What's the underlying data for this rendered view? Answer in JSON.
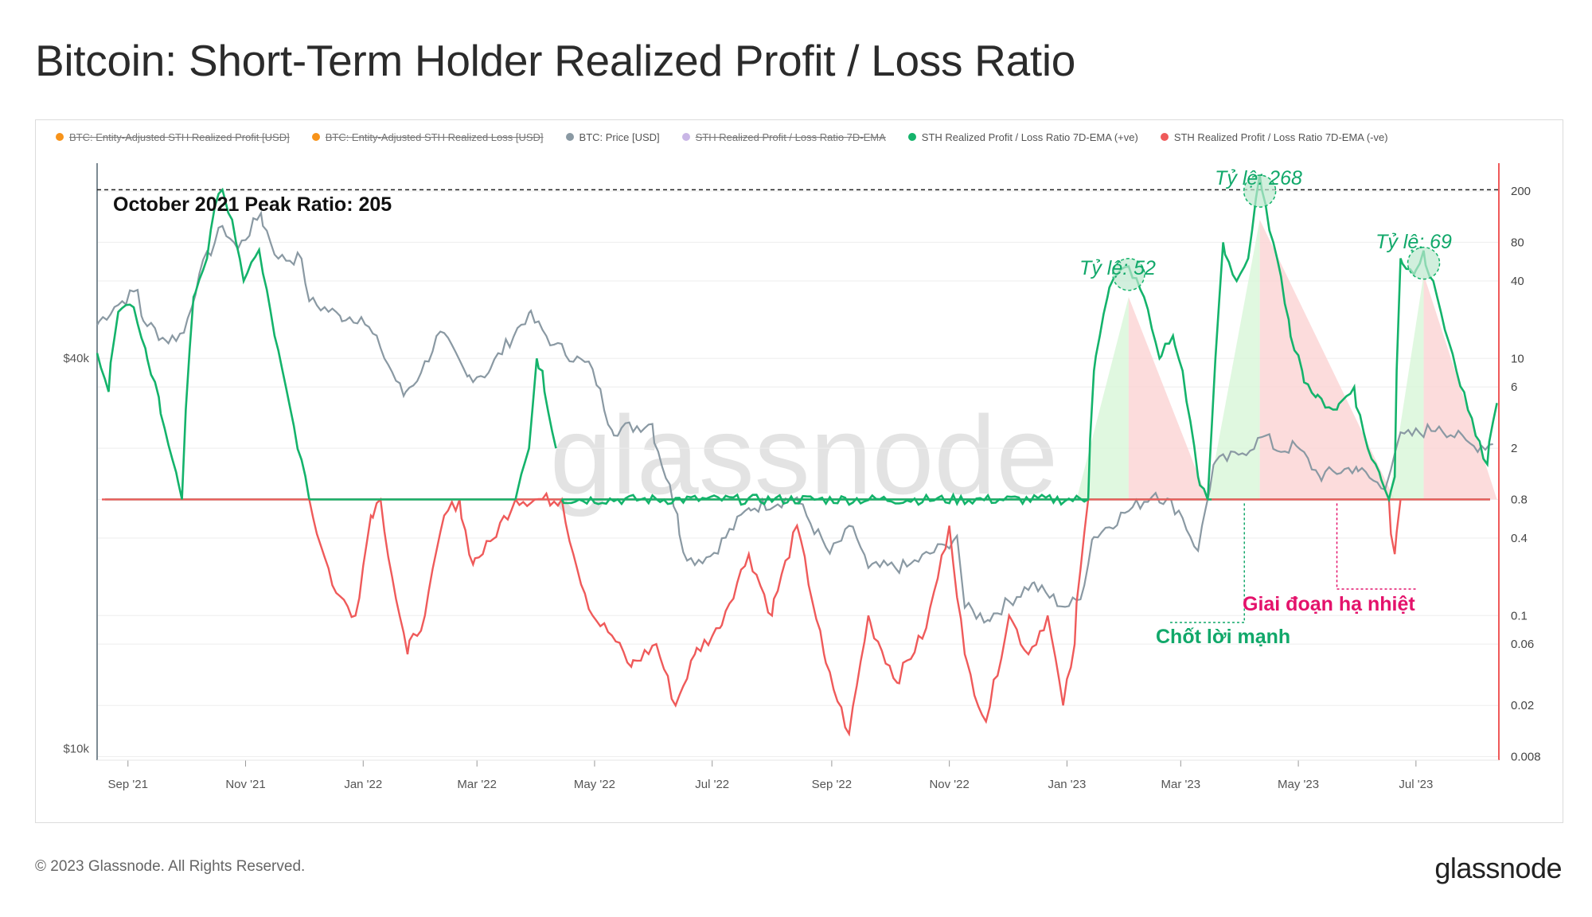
{
  "title": "Bitcoin: Short-Term Holder Realized Profit / Loss Ratio",
  "legend": [
    {
      "label": "BTC: Entity-Adjusted STH Realized Profit [USD]",
      "color": "#f7931a",
      "off": true
    },
    {
      "label": "BTC: Entity-Adjusted STH Realized Loss [USD]",
      "color": "#f7931a",
      "off": true
    },
    {
      "label": "BTC: Price [USD]",
      "color": "#8a99a3",
      "off": false
    },
    {
      "label": "STH Realized Profit / Loss Ratio 7D-EMA",
      "color": "#c9b6e6",
      "off": true
    },
    {
      "label": "STH Realized Profit / Loss Ratio 7D-EMA (+ve)",
      "color": "#14b36b",
      "off": false
    },
    {
      "label": "STH Realized Profit / Loss Ratio 7D-EMA (-ve)",
      "color": "#ef5a5a",
      "off": false
    }
  ],
  "annotations": {
    "peak_line": "October 2021  Peak Ratio: 205",
    "ratio_52": "Tỷ lệ: 52",
    "ratio_268": "Tỷ lệ: 268",
    "ratio_69": "Tỷ lệ: 69",
    "profit_taking": "Chốt lời mạnh",
    "cooling": "Giai đoạn hạ nhiệt"
  },
  "footer": {
    "copyright": "© 2023 Glassnode. All Rights Reserved.",
    "logo": "glassnode",
    "watermark": "glassnode"
  },
  "colors": {
    "price": "#8a99a3",
    "positive": "#14b36b",
    "negative": "#ef5a5a",
    "profit_fill": "#d6f5d6",
    "loss_fill": "#fbd0d0",
    "annotation_green": "#11a86a",
    "annotation_pink": "#e4126b"
  },
  "chart_data": {
    "type": "line",
    "x_ticks": [
      "Sep '21",
      "Nov '21",
      "Jan '22",
      "Mar '22",
      "May '22",
      "Jul '22",
      "Sep '22",
      "Nov '22",
      "Jan '23",
      "Mar '23",
      "May '23",
      "Jul '23"
    ],
    "x_tick_dates": [
      "2021-09-01",
      "2021-11-01",
      "2022-01-01",
      "2022-03-01",
      "2022-05-01",
      "2022-07-01",
      "2022-09-01",
      "2022-11-01",
      "2023-01-01",
      "2023-03-01",
      "2023-05-01",
      "2023-07-01"
    ],
    "x_range": [
      "2021-08-16",
      "2023-08-13"
    ],
    "left_axis": {
      "scale": "log",
      "ticks": [
        "$10k",
        "$40k"
      ],
      "tick_values": [
        10000,
        40000
      ]
    },
    "right_axis": {
      "scale": "log",
      "ticks": [
        "0.008",
        "0.02",
        "0.06",
        "0.1",
        "0.4",
        "0.8",
        "2",
        "6",
        "10",
        "40",
        "80",
        "200"
      ],
      "tick_values": [
        0.008,
        0.02,
        0.06,
        0.1,
        0.4,
        0.8,
        2,
        6,
        10,
        40,
        80,
        200
      ]
    },
    "series": [
      {
        "name": "BTC: Price [USD]",
        "axis": "left",
        "points": [
          [
            "2021-08-16",
            45000
          ],
          [
            "2021-08-25",
            48000
          ],
          [
            "2021-09-06",
            51000
          ],
          [
            "2021-09-08",
            46500
          ],
          [
            "2021-09-21",
            42500
          ],
          [
            "2021-09-30",
            43800
          ],
          [
            "2021-10-08",
            54000
          ],
          [
            "2021-10-20",
            64000
          ],
          [
            "2021-10-28",
            59000
          ],
          [
            "2021-11-09",
            67000
          ],
          [
            "2021-11-18",
            57000
          ],
          [
            "2021-11-30",
            57000
          ],
          [
            "2021-12-04",
            49000
          ],
          [
            "2021-12-20",
            46500
          ],
          [
            "2021-12-31",
            46300
          ],
          [
            "2022-01-10",
            41500
          ],
          [
            "2022-01-22",
            35000
          ],
          [
            "2022-01-31",
            38000
          ],
          [
            "2022-02-10",
            44000
          ],
          [
            "2022-02-24",
            37500
          ],
          [
            "2022-03-07",
            38000
          ],
          [
            "2022-03-28",
            47000
          ],
          [
            "2022-04-10",
            42000
          ],
          [
            "2022-04-30",
            38500
          ],
          [
            "2022-05-10",
            31000
          ],
          [
            "2022-05-31",
            31700
          ],
          [
            "2022-06-13",
            23000
          ],
          [
            "2022-06-18",
            19500
          ],
          [
            "2022-06-30",
            19800
          ],
          [
            "2022-07-20",
            23500
          ],
          [
            "2022-08-14",
            24400
          ],
          [
            "2022-08-31",
            20000
          ],
          [
            "2022-09-12",
            22000
          ],
          [
            "2022-09-20",
            19000
          ],
          [
            "2022-10-10",
            19100
          ],
          [
            "2022-10-30",
            20600
          ],
          [
            "2022-11-05",
            21300
          ],
          [
            "2022-11-09",
            16500
          ],
          [
            "2022-11-21",
            15800
          ],
          [
            "2022-12-14",
            18000
          ],
          [
            "2022-12-31",
            16550
          ],
          [
            "2023-01-08",
            17000
          ],
          [
            "2023-01-14",
            21000
          ],
          [
            "2023-01-31",
            23100
          ],
          [
            "2023-02-16",
            24800
          ],
          [
            "2023-02-28",
            23300
          ],
          [
            "2023-03-10",
            20200
          ],
          [
            "2023-03-18",
            27400
          ],
          [
            "2023-03-31",
            28400
          ],
          [
            "2023-04-14",
            30400
          ],
          [
            "2023-04-20",
            28800
          ],
          [
            "2023-04-30",
            29300
          ],
          [
            "2023-05-12",
            26300
          ],
          [
            "2023-05-31",
            27200
          ],
          [
            "2023-06-15",
            25100
          ],
          [
            "2023-06-22",
            30000
          ],
          [
            "2023-07-13",
            31400
          ],
          [
            "2023-07-31",
            29300
          ],
          [
            "2023-08-10",
            29500
          ]
        ]
      },
      {
        "name": "STH Realized Profit / Loss Ratio 7D-EMA (+ve)",
        "axis": "right",
        "points": [
          [
            "2021-08-16",
            11
          ],
          [
            "2021-08-22",
            5.5
          ],
          [
            "2021-08-27",
            23
          ],
          [
            "2021-09-04",
            25
          ],
          [
            "2021-09-10",
            12
          ],
          [
            "2021-09-17",
            5
          ],
          [
            "2021-09-26",
            1.3
          ],
          [
            "2021-09-29",
            0.8
          ],
          [
            "2021-10-01",
            4
          ],
          [
            "2021-10-05",
            30
          ],
          [
            "2021-10-12",
            60
          ],
          [
            "2021-10-16",
            150
          ],
          [
            "2021-10-20",
            205
          ],
          [
            "2021-10-25",
            120
          ],
          [
            "2021-10-31",
            40
          ],
          [
            "2021-11-08",
            70
          ],
          [
            "2021-11-16",
            15
          ],
          [
            "2021-11-26",
            3
          ],
          [
            "2021-12-04",
            0.8
          ],
          [
            "2022-03-21",
            0.8
          ],
          [
            "2022-03-28",
            2
          ],
          [
            "2022-04-01",
            10
          ],
          [
            "2022-04-04",
            8
          ],
          [
            "2022-04-11",
            2
          ],
          [
            "2022-04-14",
            0.8
          ],
          [
            "2023-01-12",
            0.8
          ],
          [
            "2023-01-15",
            8
          ],
          [
            "2023-01-22",
            30
          ],
          [
            "2023-01-27",
            45
          ],
          [
            "2023-02-02",
            52
          ],
          [
            "2023-02-10",
            30
          ],
          [
            "2023-02-18",
            10
          ],
          [
            "2023-02-25",
            15
          ],
          [
            "2023-03-02",
            8
          ],
          [
            "2023-03-10",
            1.2
          ],
          [
            "2023-03-15",
            0.8
          ],
          [
            "2023-03-19",
            10
          ],
          [
            "2023-03-23",
            80
          ],
          [
            "2023-03-30",
            40
          ],
          [
            "2023-04-05",
            60
          ],
          [
            "2023-04-11",
            268
          ],
          [
            "2023-04-18",
            80
          ],
          [
            "2023-04-26",
            20
          ],
          [
            "2023-05-03",
            8
          ],
          [
            "2023-05-10",
            5
          ],
          [
            "2023-05-21",
            4
          ],
          [
            "2023-05-30",
            6
          ],
          [
            "2023-06-06",
            2
          ],
          [
            "2023-06-12",
            1.3
          ],
          [
            "2023-06-17",
            0.8
          ],
          [
            "2023-06-20",
            1.2
          ],
          [
            "2023-06-23",
            60
          ],
          [
            "2023-06-30",
            45
          ],
          [
            "2023-07-05",
            69
          ],
          [
            "2023-07-12",
            30
          ],
          [
            "2023-07-22",
            8
          ],
          [
            "2023-08-01",
            2.5
          ],
          [
            "2023-08-07",
            1.5
          ],
          [
            "2023-08-12",
            4.5
          ]
        ]
      },
      {
        "name": "STH Realized Profit / Loss Ratio 7D-EMA (-ve)",
        "axis": "right",
        "points": [
          [
            "2021-12-04",
            0.8
          ],
          [
            "2021-12-10",
            0.35
          ],
          [
            "2021-12-18",
            0.15
          ],
          [
            "2021-12-28",
            0.1
          ],
          [
            "2022-01-05",
            0.6
          ],
          [
            "2022-01-10",
            0.8
          ],
          [
            "2022-01-16",
            0.2
          ],
          [
            "2022-01-24",
            0.05
          ],
          [
            "2022-02-02",
            0.1
          ],
          [
            "2022-02-12",
            0.6
          ],
          [
            "2022-02-20",
            0.8
          ],
          [
            "2022-02-27",
            0.25
          ],
          [
            "2022-03-10",
            0.4
          ],
          [
            "2022-03-21",
            0.8
          ],
          [
            "2022-04-14",
            0.8
          ],
          [
            "2022-04-20",
            0.3
          ],
          [
            "2022-04-30",
            0.1
          ],
          [
            "2022-05-10",
            0.07
          ],
          [
            "2022-05-20",
            0.04
          ],
          [
            "2022-06-02",
            0.06
          ],
          [
            "2022-06-12",
            0.02
          ],
          [
            "2022-06-22",
            0.05
          ],
          [
            "2022-07-05",
            0.08
          ],
          [
            "2022-07-20",
            0.3
          ],
          [
            "2022-08-01",
            0.1
          ],
          [
            "2022-08-14",
            0.5
          ],
          [
            "2022-08-28",
            0.05
          ],
          [
            "2022-09-10",
            0.012
          ],
          [
            "2022-09-20",
            0.1
          ],
          [
            "2022-10-05",
            0.03
          ],
          [
            "2022-10-20",
            0.08
          ],
          [
            "2022-11-01",
            0.5
          ],
          [
            "2022-11-09",
            0.05
          ],
          [
            "2022-11-20",
            0.015
          ],
          [
            "2022-12-02",
            0.1
          ],
          [
            "2022-12-12",
            0.05
          ],
          [
            "2022-12-22",
            0.1
          ],
          [
            "2022-12-30",
            0.02
          ],
          [
            "2023-01-05",
            0.06
          ],
          [
            "2023-01-12",
            0.8
          ],
          [
            "2023-06-17",
            0.8
          ],
          [
            "2023-06-20",
            0.3
          ],
          [
            "2023-06-23",
            0.8
          ]
        ]
      }
    ],
    "reference_line": {
      "value": 205,
      "axis": "right",
      "style": "dashed"
    },
    "baseline": {
      "value": 0.8,
      "axis": "right"
    },
    "grid": true
  }
}
